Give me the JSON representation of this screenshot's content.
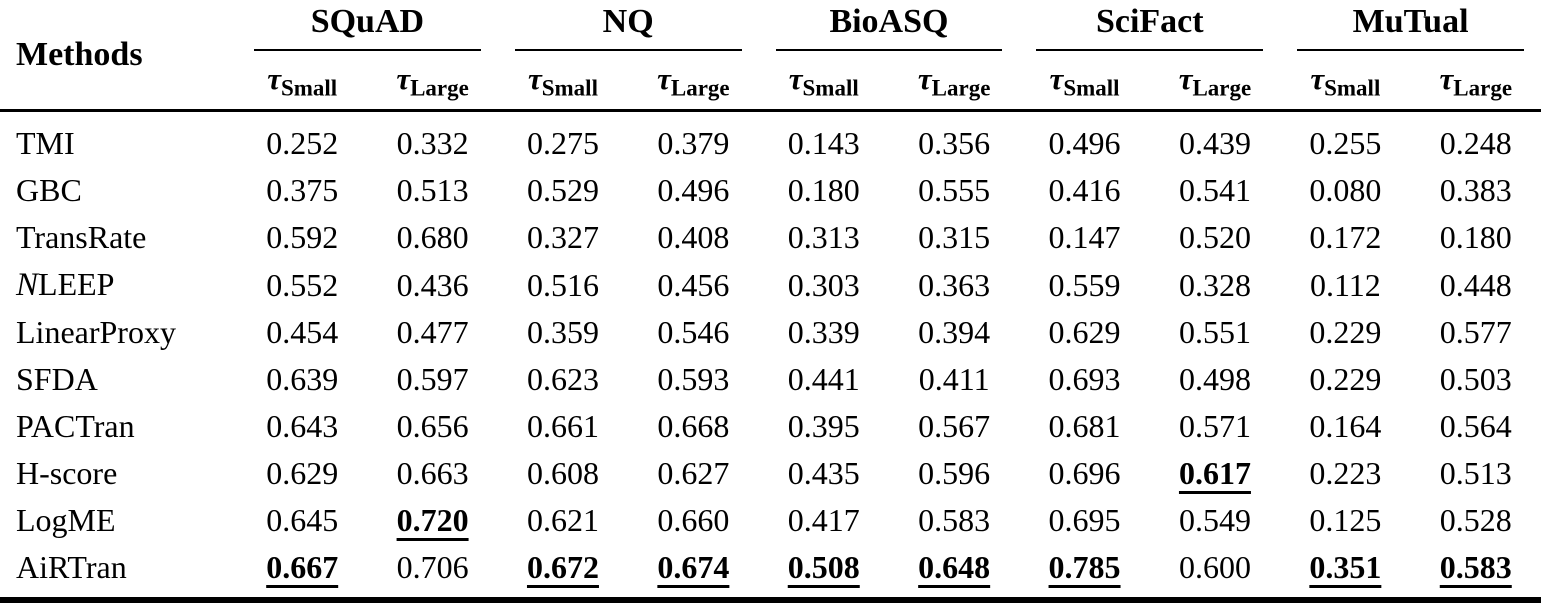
{
  "page": {
    "background_color": "#ffffff",
    "text_color": "#000000"
  },
  "table": {
    "methods_label": "Methods",
    "tau_small": {
      "symbol": "τ",
      "subscript": "Small"
    },
    "tau_large": {
      "symbol": "τ",
      "subscript": "Large"
    },
    "datasets": [
      "SQuAD",
      "NQ",
      "BioASQ",
      "SciFact",
      "MuTual"
    ],
    "column_order": [
      "SQuAD τSmall",
      "SQuAD τLarge",
      "NQ τSmall",
      "NQ τLarge",
      "BioASQ τSmall",
      "BioASQ τLarge",
      "SciFact τSmall",
      "SciFact τLarge",
      "MuTual τSmall",
      "MuTual τLarge"
    ],
    "rows": [
      {
        "method": "TMI",
        "values": [
          "0.252",
          "0.332",
          "0.275",
          "0.379",
          "0.143",
          "0.356",
          "0.496",
          "0.439",
          "0.255",
          "0.248"
        ],
        "bold_underline": []
      },
      {
        "method": "GBC",
        "values": [
          "0.375",
          "0.513",
          "0.529",
          "0.496",
          "0.180",
          "0.555",
          "0.416",
          "0.541",
          "0.080",
          "0.383"
        ],
        "bold_underline": []
      },
      {
        "method": "TransRate",
        "values": [
          "0.592",
          "0.680",
          "0.327",
          "0.408",
          "0.313",
          "0.315",
          "0.147",
          "0.520",
          "0.172",
          "0.180"
        ],
        "bold_underline": []
      },
      {
        "method": "𝒩LEEP",
        "values": [
          "0.552",
          "0.436",
          "0.516",
          "0.456",
          "0.303",
          "0.363",
          "0.559",
          "0.328",
          "0.112",
          "0.448"
        ],
        "bold_underline": []
      },
      {
        "method": "LinearProxy",
        "values": [
          "0.454",
          "0.477",
          "0.359",
          "0.546",
          "0.339",
          "0.394",
          "0.629",
          "0.551",
          "0.229",
          "0.577"
        ],
        "bold_underline": []
      },
      {
        "method": "SFDA",
        "values": [
          "0.639",
          "0.597",
          "0.623",
          "0.593",
          "0.441",
          "0.411",
          "0.693",
          "0.498",
          "0.229",
          "0.503"
        ],
        "bold_underline": []
      },
      {
        "method": "PACTran",
        "values": [
          "0.643",
          "0.656",
          "0.661",
          "0.668",
          "0.395",
          "0.567",
          "0.681",
          "0.571",
          "0.164",
          "0.564"
        ],
        "bold_underline": []
      },
      {
        "method": "H-score",
        "values": [
          "0.629",
          "0.663",
          "0.608",
          "0.627",
          "0.435",
          "0.596",
          "0.696",
          "0.617",
          "0.223",
          "0.513"
        ],
        "bold_underline": [
          7
        ]
      },
      {
        "method": "LogME",
        "values": [
          "0.645",
          "0.720",
          "0.621",
          "0.660",
          "0.417",
          "0.583",
          "0.695",
          "0.549",
          "0.125",
          "0.528"
        ],
        "bold_underline": [
          1
        ]
      },
      {
        "method": "AiRTran",
        "values": [
          "0.667",
          "0.706",
          "0.672",
          "0.674",
          "0.508",
          "0.648",
          "0.785",
          "0.600",
          "0.351",
          "0.583"
        ],
        "bold_underline": [
          0,
          2,
          3,
          4,
          5,
          6,
          8,
          9
        ]
      }
    ]
  },
  "chart_data": {
    "type": "table",
    "title": "",
    "row_header": "Methods",
    "column_groups": [
      "SQuAD",
      "NQ",
      "BioASQ",
      "SciFact",
      "MuTual"
    ],
    "sub_columns": [
      "τSmall",
      "τLarge"
    ],
    "methods": [
      "TMI",
      "GBC",
      "TransRate",
      "𝒩LEEP",
      "LinearProxy",
      "SFDA",
      "PACTran",
      "H-score",
      "LogME",
      "AiRTran"
    ],
    "values": [
      [
        0.252,
        0.332,
        0.275,
        0.379,
        0.143,
        0.356,
        0.496,
        0.439,
        0.255,
        0.248
      ],
      [
        0.375,
        0.513,
        0.529,
        0.496,
        0.18,
        0.555,
        0.416,
        0.541,
        0.08,
        0.383
      ],
      [
        0.592,
        0.68,
        0.327,
        0.408,
        0.313,
        0.315,
        0.147,
        0.52,
        0.172,
        0.18
      ],
      [
        0.552,
        0.436,
        0.516,
        0.456,
        0.303,
        0.363,
        0.559,
        0.328,
        0.112,
        0.448
      ],
      [
        0.454,
        0.477,
        0.359,
        0.546,
        0.339,
        0.394,
        0.629,
        0.551,
        0.229,
        0.577
      ],
      [
        0.639,
        0.597,
        0.623,
        0.593,
        0.441,
        0.411,
        0.693,
        0.498,
        0.229,
        0.503
      ],
      [
        0.643,
        0.656,
        0.661,
        0.668,
        0.395,
        0.567,
        0.681,
        0.571,
        0.164,
        0.564
      ],
      [
        0.629,
        0.663,
        0.608,
        0.627,
        0.435,
        0.596,
        0.696,
        0.617,
        0.223,
        0.513
      ],
      [
        0.645,
        0.72,
        0.621,
        0.66,
        0.417,
        0.583,
        0.695,
        0.549,
        0.125,
        0.528
      ],
      [
        0.667,
        0.706,
        0.672,
        0.674,
        0.508,
        0.648,
        0.785,
        0.6,
        0.351,
        0.583
      ]
    ]
  }
}
